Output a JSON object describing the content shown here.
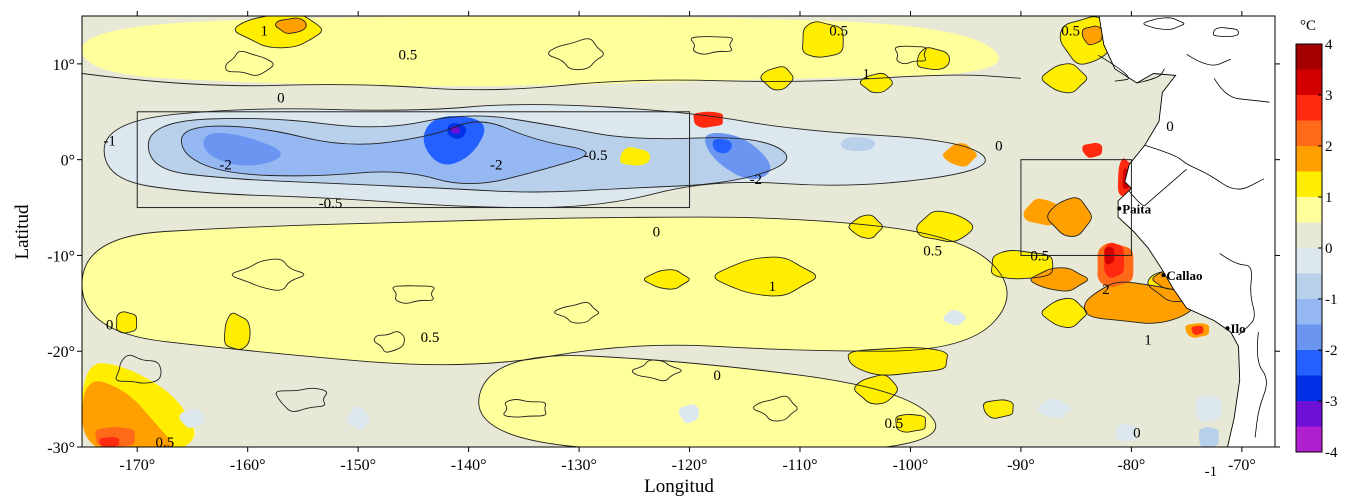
{
  "map": {
    "x_axis_title": "Longitud",
    "y_axis_title": "Latitud",
    "lon_range": [
      -175,
      -67
    ],
    "lat_range": [
      -30,
      15
    ],
    "lon_ticks": [
      {
        "value": -170,
        "label": "-170°"
      },
      {
        "value": -160,
        "label": "-160°"
      },
      {
        "value": -150,
        "label": "-150°"
      },
      {
        "value": -140,
        "label": "-140°"
      },
      {
        "value": -130,
        "label": "-130°"
      },
      {
        "value": -120,
        "label": "-120°"
      },
      {
        "value": -110,
        "label": "-110°"
      },
      {
        "value": -100,
        "label": "-100°"
      },
      {
        "value": -90,
        "label": "-90°"
      },
      {
        "value": -80,
        "label": "-80°"
      },
      {
        "value": -70,
        "label": "-70°"
      }
    ],
    "lat_ticks": [
      {
        "value": 10,
        "label": "10°"
      },
      {
        "value": 0,
        "label": "0°"
      },
      {
        "value": -10,
        "label": "-10°"
      },
      {
        "value": -20,
        "label": "-20°"
      },
      {
        "value": -30,
        "label": "-30°"
      }
    ],
    "boxes": [
      {
        "lon": [
          -170,
          -120
        ],
        "lat": [
          -5,
          5
        ]
      },
      {
        "lon": [
          -90,
          -80
        ],
        "lat": [
          -10,
          0
        ]
      }
    ],
    "cities": [
      {
        "name": "Paita",
        "lon": -81.1,
        "lat": -5.1
      },
      {
        "name": "Callao",
        "lon": -77.1,
        "lat": -12.05
      },
      {
        "name": "Ilo",
        "lon": -71.3,
        "lat": -17.6
      }
    ],
    "contour_labels": [
      {
        "text": "1",
        "lon": -158.5,
        "lat": 13.5
      },
      {
        "text": "0.5",
        "lon": -145.5,
        "lat": 11
      },
      {
        "text": "0.5",
        "lon": -106.5,
        "lat": 13.5
      },
      {
        "text": "1",
        "lon": -104,
        "lat": 9
      },
      {
        "text": "0.5",
        "lon": -85.5,
        "lat": 13.5
      },
      {
        "text": "0",
        "lon": -157,
        "lat": 6.5
      },
      {
        "text": "-1",
        "lon": -172.5,
        "lat": 2
      },
      {
        "text": "-2",
        "lon": -162,
        "lat": -0.5
      },
      {
        "text": "-0.5",
        "lon": -152.5,
        "lat": -4.5
      },
      {
        "text": "-2",
        "lon": -137.5,
        "lat": -0.5
      },
      {
        "text": "-0.5",
        "lon": -128.5,
        "lat": 0.5
      },
      {
        "text": "0",
        "lon": -123,
        "lat": -7.5
      },
      {
        "text": "-2",
        "lon": -114,
        "lat": -2
      },
      {
        "text": "0",
        "lon": -92,
        "lat": 1.5
      },
      {
        "text": "0",
        "lon": -76.5,
        "lat": 3.5
      },
      {
        "text": "0.5",
        "lon": -98,
        "lat": -9.5
      },
      {
        "text": "0.5",
        "lon": -88.3,
        "lat": -10
      },
      {
        "text": "2",
        "lon": -82.3,
        "lat": -13.5
      },
      {
        "text": "1",
        "lon": -112.5,
        "lat": -13.2
      },
      {
        "text": "0",
        "lon": -172.5,
        "lat": -17.2
      },
      {
        "text": "0.5",
        "lon": -143.5,
        "lat": -18.5
      },
      {
        "text": "0",
        "lon": -117.5,
        "lat": -22.5
      },
      {
        "text": "0.5",
        "lon": -101.5,
        "lat": -27.5
      },
      {
        "text": "1",
        "lon": -78.5,
        "lat": -18.8
      },
      {
        "text": "0",
        "lon": -79.5,
        "lat": -28.5
      },
      {
        "text": "-1",
        "lon": -72.8,
        "lat": -32.5
      },
      {
        "text": "0.5",
        "lon": -167.5,
        "lat": -29.5
      }
    ],
    "colorbar": {
      "unit": "°C",
      "ticks": [
        {
          "value": 4,
          "label": "4"
        },
        {
          "value": 3,
          "label": "3"
        },
        {
          "value": 2,
          "label": "2"
        },
        {
          "value": 1,
          "label": "1"
        },
        {
          "value": 0,
          "label": "0"
        },
        {
          "value": -1,
          "label": "-1"
        },
        {
          "value": -2,
          "label": "-2"
        },
        {
          "value": -3,
          "label": "-3"
        },
        {
          "value": -4,
          "label": "-4"
        }
      ],
      "bins": [
        {
          "from": 3.5,
          "to": 4,
          "color": "#a40000"
        },
        {
          "from": 3,
          "to": 3.5,
          "color": "#d20000"
        },
        {
          "from": 2.5,
          "to": 3,
          "color": "#ff2a10"
        },
        {
          "from": 2,
          "to": 2.5,
          "color": "#ff6a18"
        },
        {
          "from": 1.5,
          "to": 2,
          "color": "#ffa000"
        },
        {
          "from": 1,
          "to": 1.5,
          "color": "#ffee00"
        },
        {
          "from": 0.5,
          "to": 1,
          "color": "#ffff9c"
        },
        {
          "from": 0,
          "to": 0.5,
          "color": "#e8e8d6"
        },
        {
          "from": -0.5,
          "to": 0,
          "color": "#dde8ee"
        },
        {
          "from": -1,
          "to": -0.5,
          "color": "#b8d0ea"
        },
        {
          "from": -1.5,
          "to": -1,
          "color": "#96b8f2"
        },
        {
          "from": -2,
          "to": -1.5,
          "color": "#6a96f2"
        },
        {
          "from": -2.5,
          "to": -2,
          "color": "#2460ff"
        },
        {
          "from": -3,
          "to": -2.5,
          "color": "#0030e6"
        },
        {
          "from": -3.5,
          "to": -3,
          "color": "#6e10d8"
        },
        {
          "from": -4,
          "to": -3.5,
          "color": "#b020d0"
        }
      ]
    },
    "colors": {
      "background": "#e8e8d6",
      "land": "#ffffff",
      "half": "#ffff9c",
      "one": "#ffee00",
      "onehalf": "#ffa000",
      "two": "#ff6a18",
      "twohalf": "#ff2a10",
      "three": "#d20000",
      "neg_half": "#dde8ee",
      "neg_one": "#b8d0ea",
      "neg_onehalf": "#96b8f2",
      "neg_two": "#6a96f2",
      "neg_twohalf": "#2460ff",
      "neg_three": "#0030e6",
      "neg_three_half": "#6e10d8"
    }
  }
}
